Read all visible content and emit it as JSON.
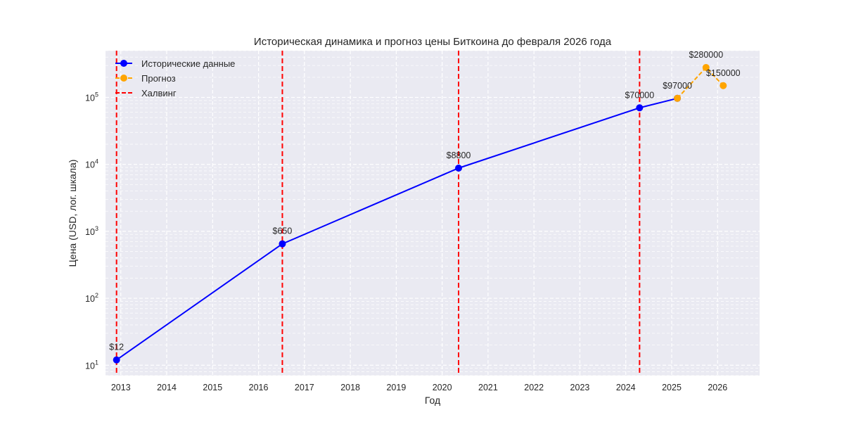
{
  "chart_data": {
    "type": "line",
    "title": "Историческая динамика и прогноз цены Биткоина до февраля 2026 года",
    "xlabel": "Год",
    "ylabel": "Цена (USD, лог. шкала)",
    "yscale": "log",
    "xlim": [
      "2012-09-01",
      "2026-12-01"
    ],
    "ylim": [
      7,
      500000
    ],
    "x_ticks": [
      "2013",
      "2014",
      "2015",
      "2016",
      "2017",
      "2018",
      "2019",
      "2020",
      "2021",
      "2022",
      "2023",
      "2024",
      "2025",
      "2026"
    ],
    "y_ticks": [
      {
        "base": "10",
        "exp": "1",
        "value": 10
      },
      {
        "base": "10",
        "exp": "2",
        "value": 100
      },
      {
        "base": "10",
        "exp": "3",
        "value": 1000
      },
      {
        "base": "10",
        "exp": "4",
        "value": 10000
      },
      {
        "base": "10",
        "exp": "5",
        "value": 100000
      }
    ],
    "grid": true,
    "legend_position": "top-left",
    "series": [
      {
        "name": "Исторические данные",
        "color": "#0000ff",
        "style": "solid",
        "points": [
          {
            "x": "2012-11-28",
            "y": 12,
            "label": "$12"
          },
          {
            "x": "2016-07-09",
            "y": 650,
            "label": "$650"
          },
          {
            "x": "2020-05-11",
            "y": 8800,
            "label": "$8800"
          },
          {
            "x": "2024-04-20",
            "y": 70000,
            "label": "$70000"
          },
          {
            "x": "2025-02-15",
            "y": 97000,
            "label": ""
          }
        ]
      },
      {
        "name": "Прогноз",
        "color": "#ffa500",
        "style": "dashed",
        "points": [
          {
            "x": "2025-02-15",
            "y": 97000,
            "label": "$97000"
          },
          {
            "x": "2025-10-01",
            "y": 280000,
            "label": "$280000"
          },
          {
            "x": "2026-02-15",
            "y": 150000,
            "label": "$150000"
          }
        ]
      }
    ],
    "halvings": {
      "name": "Халвинг",
      "color": "#ff0000",
      "dates": [
        "2012-11-28",
        "2016-07-09",
        "2020-05-11",
        "2024-04-20"
      ]
    }
  }
}
